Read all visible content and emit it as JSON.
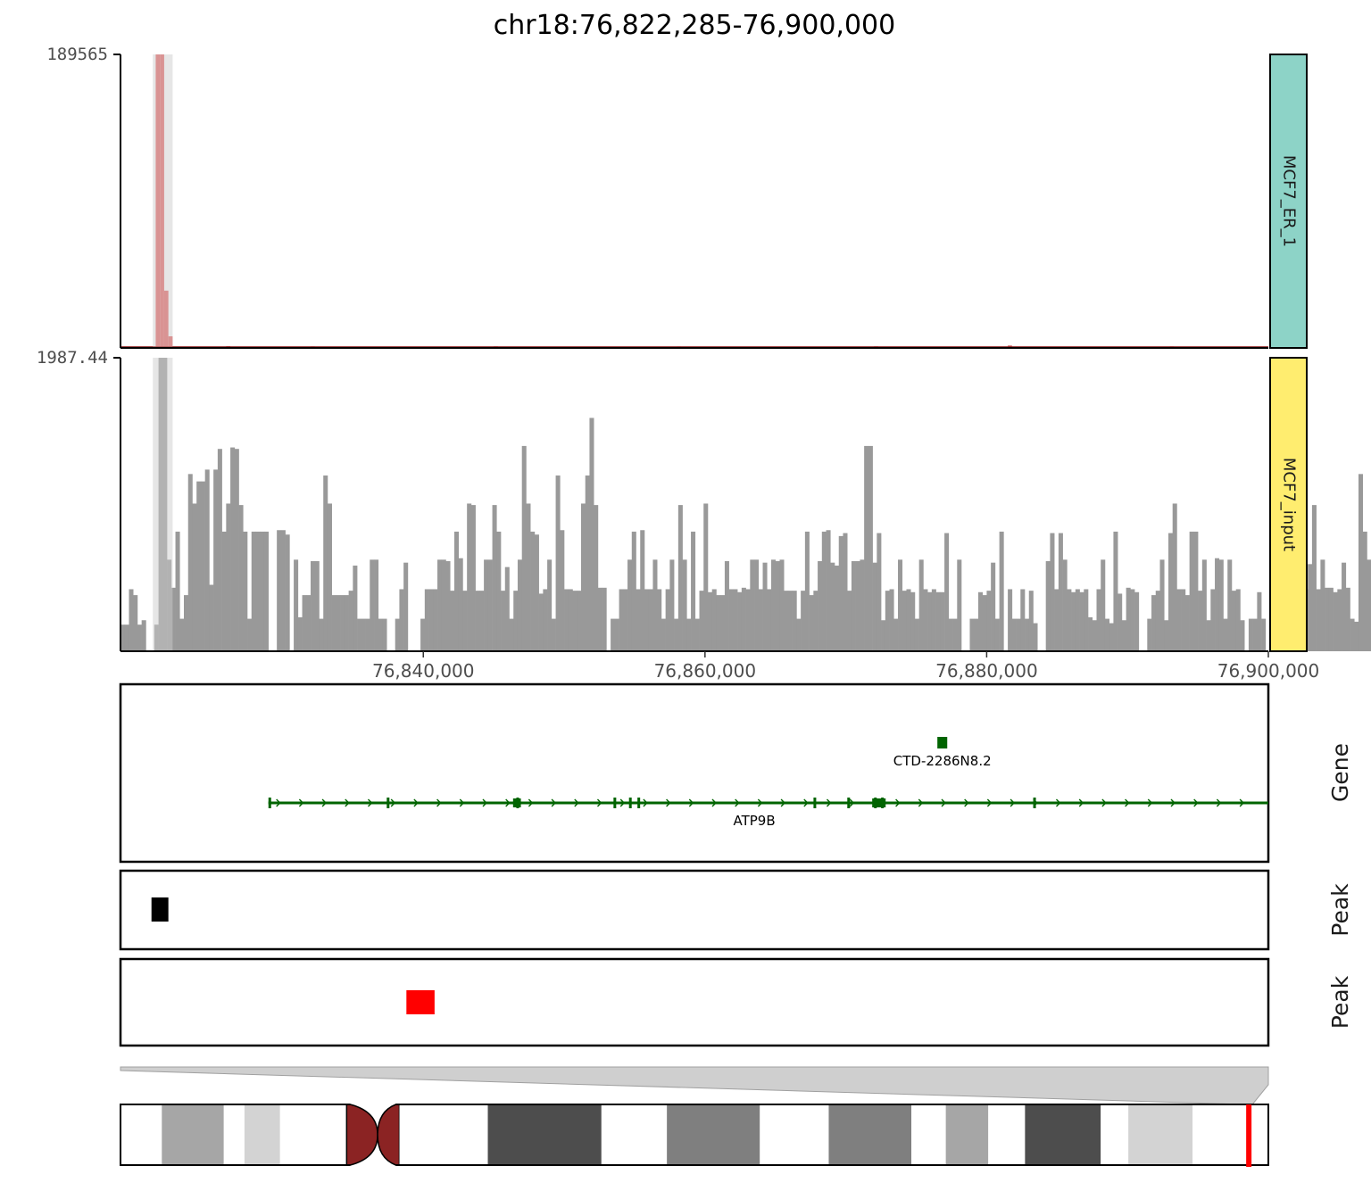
{
  "chart_data": {
    "type": "bar",
    "title": "chr18:76,822,285-76,900,000",
    "region": {
      "chrom": "chr18",
      "start": 76822285,
      "end": 76900000
    },
    "x_range": [
      76818500,
      76900000
    ],
    "x_ticks": [
      {
        "value": 76840000,
        "label": "76,840,000"
      },
      {
        "value": 76860000,
        "label": "76,860,000"
      },
      {
        "value": 76880000,
        "label": "76,880,000"
      },
      {
        "value": 76900000,
        "label": "76,900,000"
      }
    ],
    "highlight": {
      "start": 76820800,
      "end": 76822200,
      "color": "#d3d3d3"
    },
    "tracks": [
      {
        "name": "MCF7_ER_1",
        "ymax_label": "189565",
        "ymax": 189565,
        "color": "#cd6f6f",
        "strip_color": "#8dd3c7",
        "bars": [
          {
            "x": 76821000,
            "value": 189565
          },
          {
            "x": 76821300,
            "value": 189565
          },
          {
            "x": 76821600,
            "value": 37000
          },
          {
            "x": 76821900,
            "value": 7500
          },
          {
            "x": 76826000,
            "value": 1200
          },
          {
            "x": 76832000,
            "value": 800
          },
          {
            "x": 76845000,
            "value": 900
          },
          {
            "x": 76858000,
            "value": 700
          },
          {
            "x": 76872000,
            "value": 900
          },
          {
            "x": 76881500,
            "value": 1600
          },
          {
            "x": 76893000,
            "value": 800
          }
        ]
      },
      {
        "name": "MCF7_input",
        "ymax_label": "1987.44",
        "ymax": 1987.44,
        "color": "#999999",
        "strip_color": "#ffed6f",
        "bar_width_bp": 300,
        "values": [
          180,
          180,
          420,
          380,
          180,
          210,
          0,
          0,
          180,
          1987.44,
          1987.44,
          620,
          430,
          810,
          220,
          380,
          1200,
          1000,
          1150,
          1150,
          1230,
          450,
          1230,
          1370,
          810,
          1000,
          1380,
          1370,
          990,
          810,
          220,
          810,
          810,
          810,
          810,
          0,
          0,
          820,
          820,
          790,
          0,
          620,
          230,
          380,
          380,
          610,
          610,
          220,
          1190,
          1000,
          380,
          380,
          380,
          380,
          410,
          580,
          220,
          220,
          220,
          620,
          620,
          220,
          220,
          0,
          0,
          220,
          420,
          600,
          0,
          0,
          0,
          220,
          420,
          420,
          420,
          620,
          620,
          610,
          410,
          810,
          630,
          410,
          1000,
          990,
          410,
          410,
          620,
          620,
          990,
          810,
          410,
          570,
          220,
          410,
          620,
          1390,
          1000,
          810,
          790,
          390,
          420,
          620,
          220,
          1190,
          820,
          420,
          420,
          410,
          410,
          1000,
          1190,
          1580,
          990,
          430,
          430,
          0,
          220,
          220,
          420,
          420,
          620,
          810,
          420,
          820,
          420,
          420,
          620,
          420,
          220,
          420,
          620,
          220,
          990,
          620,
          220,
          810,
          220,
          410,
          1000,
          400,
          420,
          380,
          380,
          610,
          420,
          420,
          400,
          430,
          420,
          620,
          620,
          420,
          600,
          420,
          620,
          610,
          620,
          410,
          410,
          410,
          220,
          410,
          810,
          380,
          410,
          610,
          810,
          820,
          600,
          580,
          780,
          800,
          410,
          610,
          610,
          620,
          1390,
          1390,
          600,
          800,
          210,
          410,
          420,
          220,
          620,
          410,
          420,
          400,
          220,
          620,
          420,
          400,
          420,
          400,
          400,
          800,
          220,
          220,
          620,
          0,
          0,
          220,
          220,
          400,
          380,
          410,
          600,
          220,
          810,
          0,
          420,
          220,
          220,
          420,
          220,
          410,
          190,
          0,
          0,
          610,
          800,
          420,
          800,
          620,
          420,
          400,
          420,
          400,
          420,
          230,
          210,
          420,
          620,
          220,
          190,
          810,
          390,
          210,
          430,
          420,
          400,
          0,
          0,
          220,
          380,
          410,
          620,
          210,
          800,
          1000,
          420,
          420,
          380,
          810,
          810,
          410,
          620,
          210,
          420,
          630,
          620,
          220,
          620,
          410,
          420,
          210,
          0,
          220,
          220,
          400,
          220,
          0,
          800,
          420,
          420,
          620,
          410,
          990,
          820,
          620,
          420,
          590,
          990,
          420,
          620,
          430,
          430,
          400,
          420,
          600,
          430,
          220,
          200,
          1200,
          810,
          620,
          430,
          410,
          810,
          600,
          400,
          0,
          0,
          420,
          420,
          420,
          620,
          410,
          420,
          620,
          430,
          800,
          620,
          800,
          410,
          800,
          800
        ]
      }
    ],
    "genes": [
      {
        "name": "ATP9B",
        "start": 76829000,
        "end": 76900000,
        "strand": "+",
        "exons": [
          76829100,
          76837500,
          76846700,
          76853600,
          76854700,
          76855300,
          76867800,
          76870200,
          76872100,
          76872600,
          76883400
        ],
        "thick_exons": [
          [
            76846500,
            76846800
          ],
          [
            76872000,
            76872700
          ]
        ],
        "color": "#006400"
      },
      {
        "name": "CTD-2286N8.2",
        "start": 76876500,
        "end": 76877200,
        "strand": "+",
        "color": "#006400"
      }
    ],
    "peak_tracks": [
      {
        "label": "Peak",
        "peaks": [
          {
            "start": 76820700,
            "end": 76821900
          }
        ],
        "color": "#000000"
      },
      {
        "label": "Peak",
        "peaks": [
          {
            "start": 76838800,
            "end": 76840800
          }
        ],
        "color": "#ff0000"
      }
    ],
    "ideogram": {
      "chrom": "chr18",
      "bands": [
        {
          "start": 0.0,
          "end": 0.036,
          "color": "#ffffff"
        },
        {
          "start": 0.036,
          "end": 0.09,
          "color": "#a6a6a6"
        },
        {
          "start": 0.09,
          "end": 0.108,
          "color": "#ffffff"
        },
        {
          "start": 0.108,
          "end": 0.139,
          "color": "#d3d3d3"
        },
        {
          "start": 0.139,
          "end": 0.197,
          "color": "#ffffff"
        },
        {
          "start": 0.197,
          "end": 0.224,
          "color": "#8b2323",
          "centromere": "p"
        },
        {
          "start": 0.224,
          "end": 0.243,
          "color": "#8b2323",
          "centromere": "q"
        },
        {
          "start": 0.243,
          "end": 0.32,
          "color": "#ffffff"
        },
        {
          "start": 0.32,
          "end": 0.419,
          "color": "#4d4d4d"
        },
        {
          "start": 0.419,
          "end": 0.476,
          "color": "#ffffff"
        },
        {
          "start": 0.476,
          "end": 0.557,
          "color": "#7f7f7f"
        },
        {
          "start": 0.557,
          "end": 0.617,
          "color": "#ffffff"
        },
        {
          "start": 0.617,
          "end": 0.689,
          "color": "#7f7f7f"
        },
        {
          "start": 0.689,
          "end": 0.719,
          "color": "#ffffff"
        },
        {
          "start": 0.719,
          "end": 0.756,
          "color": "#a6a6a6"
        },
        {
          "start": 0.756,
          "end": 0.788,
          "color": "#ffffff"
        },
        {
          "start": 0.788,
          "end": 0.854,
          "color": "#4d4d4d"
        },
        {
          "start": 0.854,
          "end": 0.878,
          "color": "#ffffff"
        },
        {
          "start": 0.878,
          "end": 0.934,
          "color": "#d3d3d3"
        },
        {
          "start": 0.934,
          "end": 1.0,
          "color": "#ffffff"
        }
      ],
      "marker": 0.983,
      "marker_color": "#ff0000"
    }
  }
}
